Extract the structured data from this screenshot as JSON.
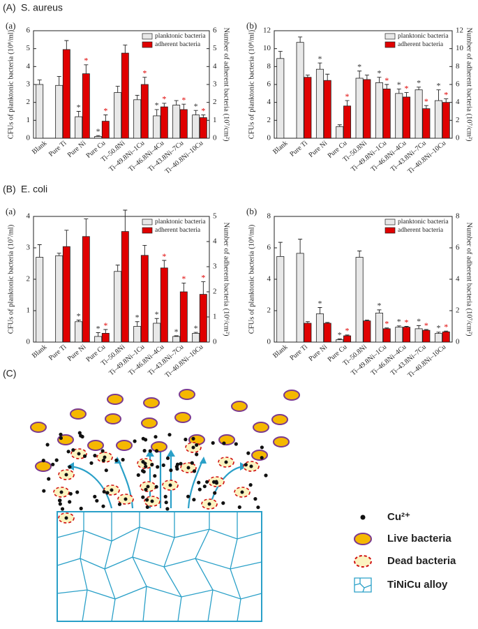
{
  "panels": [
    {
      "label": "(A)",
      "title": "S. aureus"
    },
    {
      "label": "(B)",
      "title": "E. coli"
    },
    {
      "label": "(C)"
    }
  ],
  "chart_data": [
    {
      "type": "bar",
      "label": "(a)",
      "legend": "upper right",
      "ylabel": "CFUs of planktonic bacteria (10⁸/ml)",
      "y2label": "Number of adherent bacteria (10⁷/cm²)",
      "categories": [
        "Blank",
        "Pure Ti",
        "Pure Ni",
        "Pure Cu",
        "Ti–50.8Ni",
        "Ti–49.8Ni–1Cu",
        "Ti–46.8Ni–4Cu",
        "Ti–43.8Ni–7Cu",
        "Ti–40.8Ni–10Cu"
      ],
      "ylim": [
        0,
        6
      ],
      "yticks": [
        0,
        1,
        2,
        3,
        4,
        5,
        6
      ],
      "y2lim": [
        0,
        6
      ],
      "y2ticks": [
        0,
        1,
        2,
        3,
        4,
        5,
        6
      ],
      "series": [
        {
          "name": "planktonic bacteria",
          "color": "#e8e8e8",
          "marker_color": "#333333",
          "values": [
            3.0,
            2.95,
            1.2,
            0.1,
            2.55,
            2.15,
            1.25,
            1.85,
            1.3
          ],
          "errors": [
            0.25,
            0.5,
            0.3,
            0.05,
            0.35,
            0.25,
            0.35,
            0.25,
            0.25
          ],
          "significance": [
            null,
            null,
            "*",
            "*",
            null,
            null,
            "*",
            null,
            "*"
          ]
        },
        {
          "name": "adherent bacteria",
          "color": "#e00000",
          "marker_color": "#e00000",
          "axis": "y2",
          "values": [
            null,
            4.95,
            3.6,
            0.95,
            4.75,
            3.0,
            1.75,
            1.6,
            1.15
          ],
          "errors": [
            null,
            0.5,
            0.5,
            0.35,
            0.45,
            0.4,
            0.2,
            0.3,
            0.15
          ],
          "significance": [
            null,
            null,
            "*",
            "*",
            null,
            "*",
            "*",
            "*",
            "*"
          ]
        }
      ]
    },
    {
      "type": "bar",
      "label": "(b)",
      "legend": "upper right",
      "ylabel": "CFUs of planktonic bacteria (10⁸/ml)",
      "y2label": "Number of adherent bacteria (10⁷/cm²)",
      "categories": [
        "Blank",
        "Pure Ti",
        "Pure Ni",
        "Pure Cu",
        "Ti–50.8Ni",
        "Ti–49.8Ni–1Cu",
        "Ti–46.8Ni–4Cu",
        "Ti–43.8Ni–7Cu",
        "Ti–40.8Ni–10Cu"
      ],
      "ylim": [
        0,
        12
      ],
      "yticks": [
        0,
        2,
        4,
        6,
        8,
        10,
        12
      ],
      "y2lim": [
        0,
        12
      ],
      "y2ticks": [
        0,
        2,
        4,
        6,
        8,
        10,
        12
      ],
      "series": [
        {
          "name": "planktonic bacteria",
          "color": "#e8e8e8",
          "marker_color": "#333333",
          "values": [
            8.9,
            10.7,
            7.7,
            1.3,
            6.7,
            6.2,
            5.0,
            5.4,
            4.2
          ],
          "errors": [
            0.8,
            0.6,
            0.7,
            0.2,
            0.8,
            0.6,
            0.5,
            0.3,
            1.2
          ],
          "significance": [
            null,
            null,
            "*",
            null,
            "*",
            "*",
            "*",
            "*",
            "*"
          ]
        },
        {
          "name": "adherent bacteria",
          "color": "#e00000",
          "marker_color": "#e00000",
          "axis": "y2",
          "values": [
            null,
            6.8,
            6.45,
            3.6,
            6.55,
            5.5,
            4.6,
            3.3,
            4.0
          ],
          "errors": [
            null,
            0.25,
            0.7,
            0.6,
            0.5,
            0.5,
            0.5,
            0.35,
            0.4
          ],
          "significance": [
            null,
            null,
            null,
            "*",
            null,
            "*",
            "*",
            "*",
            "*"
          ]
        }
      ]
    },
    {
      "type": "bar",
      "label": "(a)",
      "legend": "upper right",
      "ylabel": "CFUs of planktonic bacteria (10⁷/ml)",
      "y2label": "Number of adherent bacteria (10⁶/cm²)",
      "categories": [
        "Blank",
        "Pure Ti",
        "Pure Ni",
        "Pure Cu",
        "Ti–50.8Ni",
        "Ti–49.8Ni–1Cu",
        "Ti–46.8Ni–4Cu",
        "Ti–43.8Ni–7Cu",
        "Ti–40.8Ni–10Cu"
      ],
      "ylim": [
        0,
        4
      ],
      "yticks": [
        0,
        1,
        2,
        3,
        4
      ],
      "y2lim": [
        0,
        5
      ],
      "y2ticks": [
        0,
        1,
        2,
        3,
        4,
        5
      ],
      "series": [
        {
          "name": "planktonic bacteria",
          "color": "#e8e8e8",
          "marker_color": "#333333",
          "values": [
            2.7,
            2.75,
            0.65,
            0.18,
            2.25,
            0.5,
            0.6,
            0.18,
            0.28
          ],
          "errors": [
            0.4,
            0.08,
            0.05,
            0.12,
            0.2,
            0.15,
            0.15,
            0.02,
            0.03
          ],
          "significance": [
            null,
            null,
            "*",
            "*",
            null,
            "*",
            "*",
            "*",
            "*"
          ]
        },
        {
          "name": "adherent bacteria",
          "color": "#e00000",
          "marker_color": "#e00000",
          "axis": "y2",
          "values": [
            null,
            3.8,
            4.2,
            0.35,
            4.4,
            3.45,
            2.95,
            2.0,
            1.9
          ],
          "errors": [
            null,
            0.65,
            0.7,
            0.15,
            0.85,
            0.4,
            0.3,
            0.35,
            0.5
          ],
          "significance": [
            null,
            null,
            null,
            "*",
            null,
            null,
            "*",
            "*",
            "*"
          ]
        }
      ]
    },
    {
      "type": "bar",
      "label": "(b)",
      "legend": "upper right",
      "ylabel": "CFUs of planktonic bacteria (10⁸/ml)",
      "y2label": "Number of adherent bacteria (10⁷/cm²)",
      "categories": [
        "Blank",
        "Pure Ti",
        "Pure Ni",
        "Pure Cu",
        "Ti–50.8Ni",
        "Ti–49.8Ni–1Cu",
        "Ti–46.8Ni–4Cu",
        "Ti–43.8Ni–7Cu",
        "Ti–40.8Ni–10Cu"
      ],
      "ylim": [
        0,
        8
      ],
      "yticks": [
        0,
        2,
        4,
        6,
        8
      ],
      "y2lim": [
        0,
        8
      ],
      "y2ticks": [
        0,
        2,
        4,
        6,
        8
      ],
      "series": [
        {
          "name": "planktonic bacteria",
          "color": "#e8e8e8",
          "marker_color": "#333333",
          "values": [
            5.45,
            5.65,
            1.8,
            0.15,
            5.4,
            1.85,
            0.95,
            0.85,
            0.55
          ],
          "errors": [
            0.9,
            0.9,
            0.4,
            0.05,
            0.4,
            0.2,
            0.08,
            0.2,
            0.08
          ],
          "significance": [
            null,
            null,
            "*",
            "*",
            null,
            "*",
            "*",
            "*",
            "*"
          ]
        },
        {
          "name": "adherent bacteria",
          "color": "#e00000",
          "marker_color": "#e00000",
          "axis": "y2",
          "values": [
            null,
            1.2,
            1.2,
            0.4,
            1.35,
            0.85,
            0.95,
            0.75,
            0.65
          ],
          "errors": [
            null,
            0.1,
            0.05,
            0.05,
            0.05,
            0.05,
            0.05,
            0.05,
            0.05
          ],
          "significance": [
            null,
            null,
            null,
            "*",
            null,
            "*",
            "*",
            "*",
            "*"
          ]
        }
      ]
    }
  ],
  "diagram": {
    "legend": [
      "Cu²⁺",
      "Live bacteria",
      "Dead bacteria",
      "TiNiCu alloy"
    ]
  }
}
